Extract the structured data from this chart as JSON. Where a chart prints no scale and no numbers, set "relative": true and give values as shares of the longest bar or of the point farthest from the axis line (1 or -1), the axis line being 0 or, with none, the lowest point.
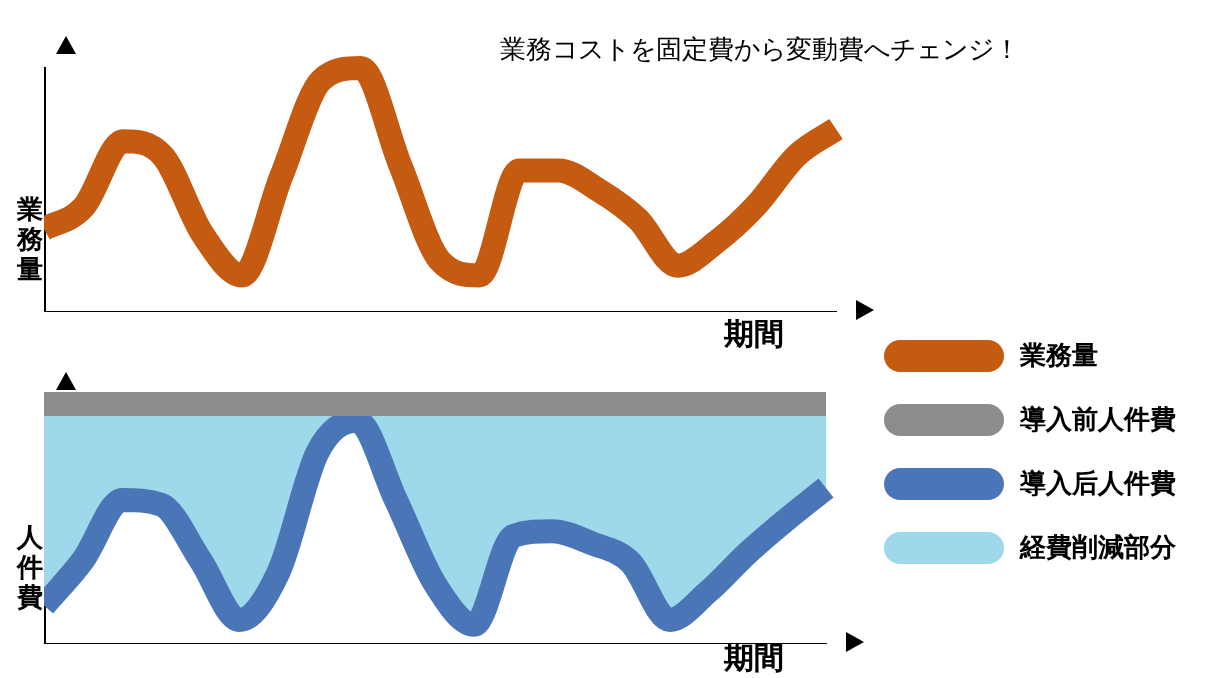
{
  "chart_data": [
    {
      "type": "line",
      "title": "業務コストを固定費から変動費へチェンジ！",
      "xlabel": "期間",
      "ylabel": "業務量",
      "relative": true,
      "grid": false,
      "marker": "none",
      "legend": "right",
      "categories": [
        null,
        null,
        null,
        null,
        null,
        null,
        null,
        null,
        null,
        null,
        null,
        null,
        null,
        null,
        null,
        null,
        null,
        null,
        null,
        null,
        null
      ],
      "series": [
        {
          "name": "業務量",
          "color": "#c55a11",
          "type": "line",
          "values": [
            0.34,
            0.43,
            0.7,
            0.64,
            0.32,
            0.15,
            0.56,
            0.95,
            1,
            0.6,
            0.21,
            0.15,
            0.58,
            0.58,
            0.5,
            0.38,
            0.19,
            0.29,
            0.44,
            0.64,
            0.75
          ]
        }
      ]
    },
    {
      "type": "line",
      "xlabel": "期間",
      "ylabel": "人件費",
      "relative": true,
      "grid": false,
      "marker": "none",
      "legend": "right",
      "categories": [
        null,
        null,
        null,
        null,
        null,
        null,
        null,
        null,
        null,
        null,
        null,
        null,
        null,
        null,
        null,
        null,
        null,
        null,
        null,
        null,
        null
      ],
      "series": [
        {
          "name": "導入前人件費",
          "color": "#8c8c8c",
          "type": "line",
          "values": [
            1,
            1,
            1,
            1,
            1,
            1,
            1,
            1,
            1,
            1,
            1,
            1,
            1,
            1,
            1,
            1,
            1,
            1,
            1,
            1,
            1
          ]
        },
        {
          "name": "導入后人件費",
          "color": "#4a76b8",
          "type": "line",
          "values": [
            0.16,
            0.35,
            0.6,
            0.58,
            0.35,
            0.1,
            0.3,
            0.8,
            0.93,
            0.6,
            0.25,
            0.08,
            0.45,
            0.47,
            0.42,
            0.34,
            0.1,
            0.22,
            0.38,
            0.52,
            0.65
          ]
        },
        {
          "name": "経費削減部分",
          "color": "#9dd9ea",
          "type": "area",
          "values": [
            1,
            1,
            1,
            1,
            1,
            1,
            1,
            1,
            1,
            1,
            1,
            1,
            1,
            1,
            1,
            1,
            1,
            1,
            1,
            1,
            1
          ]
        }
      ]
    }
  ]
}
